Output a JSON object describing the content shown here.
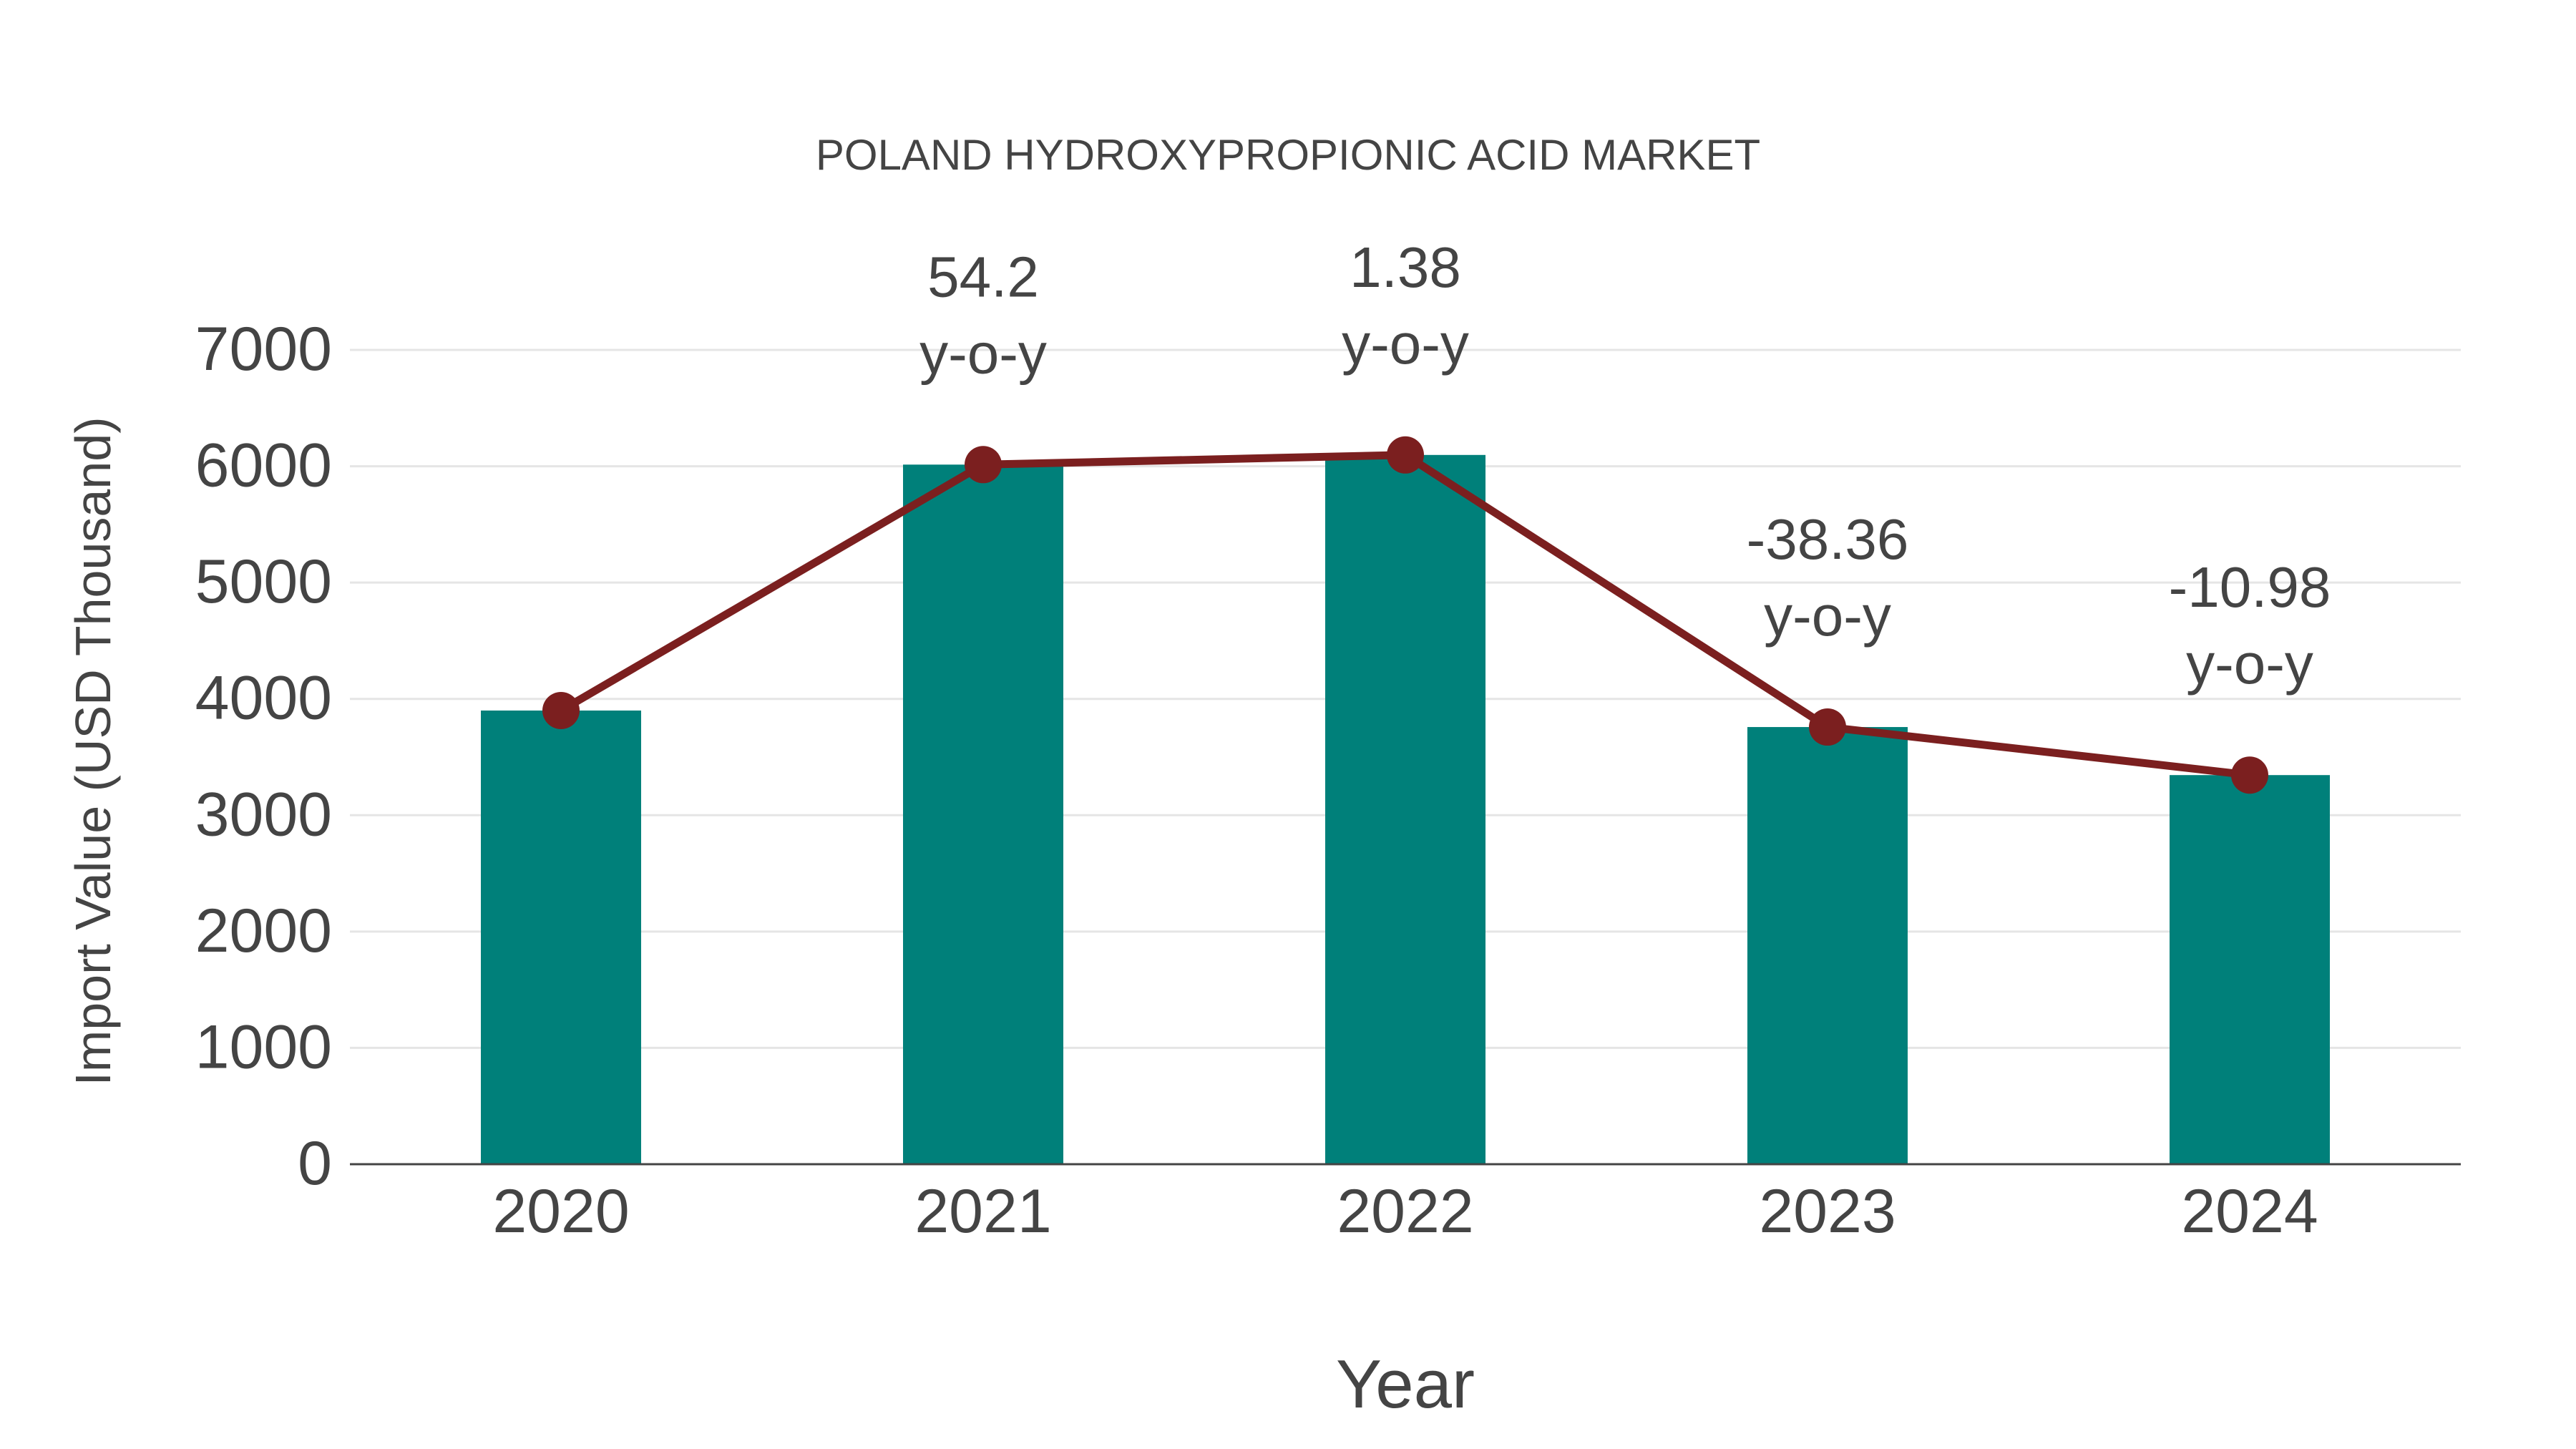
{
  "chart_data": {
    "type": "bar",
    "title": "POLAND HYDROXYPROPIONIC ACID MARKET",
    "xlabel": "Year",
    "ylabel": "Import Value (USD Thousand)",
    "categories": [
      "2020",
      "2021",
      "2022",
      "2023",
      "2024"
    ],
    "series": [
      {
        "name": "Import Value",
        "type": "bar",
        "color": "#00807A",
        "values": [
          3900,
          6014,
          6097,
          3758,
          3345
        ]
      },
      {
        "name": "Trend",
        "type": "line",
        "color": "#7B1F1F",
        "values": [
          3900,
          6014,
          6097,
          3758,
          3345
        ]
      }
    ],
    "annotations": [
      {
        "category": "2021",
        "value": "54.2",
        "suffix": "y-o-y"
      },
      {
        "category": "2022",
        "value": "1.38",
        "suffix": "y-o-y"
      },
      {
        "category": "2023",
        "value": "-38.36",
        "suffix": "y-o-y"
      },
      {
        "category": "2024",
        "value": "-10.98",
        "suffix": "y-o-y"
      }
    ],
    "yticks": [
      0,
      1000,
      2000,
      3000,
      4000,
      5000,
      6000,
      7000
    ],
    "ylim": [
      0,
      7000
    ],
    "grid": true,
    "legend": "none"
  },
  "colors": {
    "bar": "#00807A",
    "line": "#7B1F1F",
    "text": "#444444",
    "grid": "#E5E5E5",
    "axis": "#444444"
  }
}
